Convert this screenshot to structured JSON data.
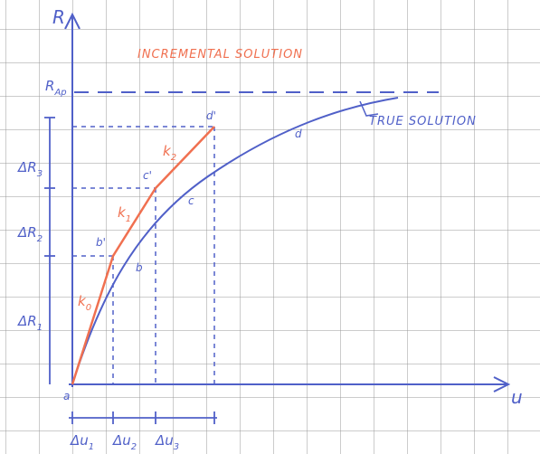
{
  "axes": {
    "y_label": "R",
    "x_label": "u",
    "limit": {
      "main": "R",
      "sub": "Ap"
    }
  },
  "annotations": {
    "incremental": "INCREMENTAL SOLUTION",
    "true_solution": "TRUE SOLUTION"
  },
  "load_increments": [
    {
      "main": "ΔR",
      "sub": "1"
    },
    {
      "main": "ΔR",
      "sub": "2"
    },
    {
      "main": "ΔR",
      "sub": "3"
    }
  ],
  "displacement_increments": [
    {
      "main": "Δu",
      "sub": "1"
    },
    {
      "main": "Δu",
      "sub": "2"
    },
    {
      "main": "Δu",
      "sub": "3"
    }
  ],
  "stiffness": [
    {
      "main": "k",
      "sub": "0"
    },
    {
      "main": "k",
      "sub": "1"
    },
    {
      "main": "k",
      "sub": "2"
    }
  ],
  "points": [
    "a",
    "b",
    "b'",
    "c",
    "c'",
    "d",
    "d'"
  ]
}
